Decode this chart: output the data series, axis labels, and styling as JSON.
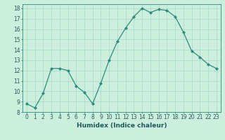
{
  "x": [
    0,
    1,
    2,
    3,
    4,
    5,
    6,
    7,
    8,
    9,
    10,
    11,
    12,
    13,
    14,
    15,
    16,
    17,
    18,
    19,
    20,
    21,
    22,
    23
  ],
  "y": [
    8.8,
    8.4,
    9.8,
    12.2,
    12.2,
    12.0,
    10.5,
    9.9,
    8.8,
    10.8,
    13.0,
    14.8,
    16.1,
    17.2,
    18.0,
    17.6,
    17.9,
    17.8,
    17.2,
    15.7,
    13.9,
    13.3,
    12.6,
    12.2
  ],
  "line_color": "#2d8b7a",
  "marker_color": "#2d8b7a",
  "bg_color": "#cceedd",
  "grid_color": "#aaddcc",
  "xlabel": "Humidex (Indice chaleur)",
  "xlim": [
    -0.5,
    23.5
  ],
  "ylim": [
    8,
    18.4
  ],
  "yticks": [
    8,
    9,
    10,
    11,
    12,
    13,
    14,
    15,
    16,
    17,
    18
  ],
  "xticks": [
    0,
    1,
    2,
    3,
    4,
    5,
    6,
    7,
    8,
    9,
    10,
    11,
    12,
    13,
    14,
    15,
    16,
    17,
    18,
    19,
    20,
    21,
    22,
    23
  ],
  "xlabel_fontsize": 6.5,
  "tick_fontsize": 5.5
}
